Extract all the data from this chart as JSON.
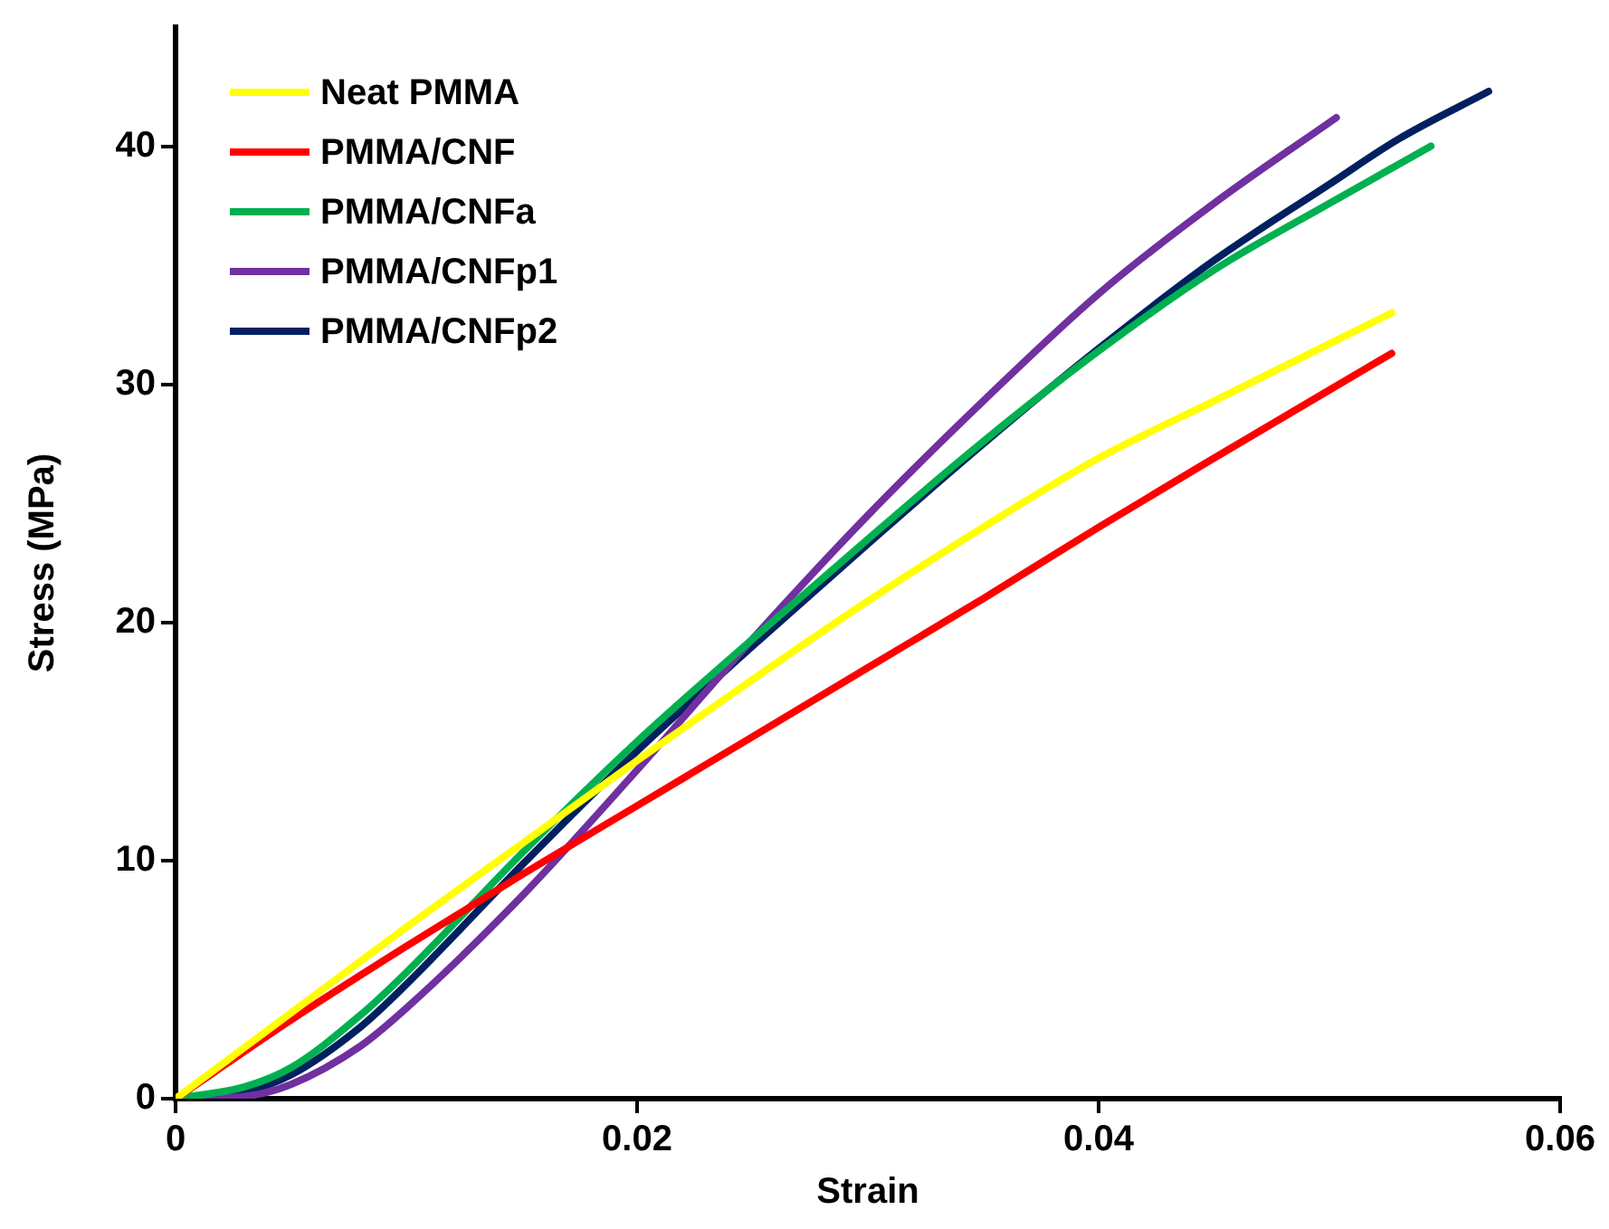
{
  "chart_data": {
    "type": "line",
    "xlabel": "Strain",
    "ylabel": "Stress (MPa)",
    "xlim": [
      0,
      0.06
    ],
    "xticks": [
      0,
      0.02,
      0.04,
      0.06
    ],
    "ylim": [
      0,
      45
    ],
    "yticks": [
      0,
      10,
      20,
      30,
      40
    ],
    "grid": false,
    "legend": "top left",
    "marker": "none",
    "line_style": "solid",
    "series": [
      {
        "name": "Neat PMMA",
        "color": "#ffff00",
        "x": [
          0,
          0.005,
          0.01,
          0.015,
          0.02,
          0.025,
          0.03,
          0.035,
          0.04,
          0.045,
          0.0527
        ],
        "values": [
          0,
          3.6,
          7.2,
          10.7,
          14.2,
          17.6,
          20.9,
          24.0,
          26.9,
          29.3,
          33.0
        ]
      },
      {
        "name": "PMMA/CNF",
        "color": "#ff0000",
        "x": [
          0,
          0.005,
          0.01,
          0.015,
          0.02,
          0.025,
          0.03,
          0.035,
          0.04,
          0.045,
          0.0527
        ],
        "values": [
          0,
          3.3,
          6.4,
          9.4,
          12.3,
          15.2,
          18.1,
          21.0,
          24.0,
          26.9,
          31.3
        ]
      },
      {
        "name": "PMMA/CNFa",
        "color": "#00b050",
        "x": [
          0,
          0.003,
          0.005,
          0.008,
          0.01,
          0.015,
          0.02,
          0.025,
          0.03,
          0.035,
          0.04,
          0.045,
          0.05,
          0.0544
        ],
        "values": [
          0,
          0.5,
          1.3,
          3.5,
          5.3,
          10.3,
          15.0,
          19.3,
          23.5,
          27.6,
          31.4,
          34.8,
          37.6,
          40.0
        ]
      },
      {
        "name": "PMMA/CNFp1",
        "color": "#7030a0",
        "x": [
          0,
          0.003,
          0.005,
          0.008,
          0.01,
          0.015,
          0.02,
          0.025,
          0.03,
          0.035,
          0.04,
          0.045,
          0.0503
        ],
        "values": [
          0,
          0.1,
          0.6,
          2.2,
          3.8,
          8.5,
          13.8,
          19.3,
          24.5,
          29.3,
          33.8,
          37.6,
          41.2
        ]
      },
      {
        "name": "PMMA/CNFp2",
        "color": "#002060",
        "x": [
          0,
          0.003,
          0.005,
          0.008,
          0.01,
          0.015,
          0.02,
          0.025,
          0.03,
          0.035,
          0.04,
          0.045,
          0.05,
          0.053,
          0.0569
        ],
        "values": [
          0,
          0.3,
          1.0,
          3.0,
          4.8,
          9.8,
          14.6,
          19.0,
          23.3,
          27.5,
          31.5,
          35.2,
          38.4,
          40.3,
          42.3
        ]
      }
    ]
  }
}
